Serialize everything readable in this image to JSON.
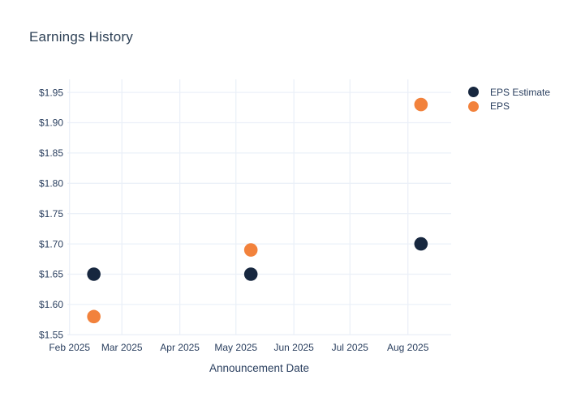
{
  "chart_data": {
    "type": "scatter",
    "title": "Earnings History",
    "xlabel": "Announcement Date",
    "ylabel": "",
    "grid": true,
    "legend_position": "right",
    "ylim": [
      1.55,
      1.95
    ],
    "y_ticks": [
      1.55,
      1.6,
      1.65,
      1.7,
      1.75,
      1.8,
      1.85,
      1.9,
      1.95
    ],
    "y_tick_labels": [
      "$1.55",
      "$1.60",
      "$1.65",
      "$1.70",
      "$1.75",
      "$1.80",
      "$1.85",
      "$1.90",
      "$1.95"
    ],
    "x_ticks": [
      {
        "date": "2025-02-01",
        "label": "Feb 2025"
      },
      {
        "date": "2025-03-01",
        "label": "Mar 2025"
      },
      {
        "date": "2025-04-01",
        "label": "Apr 2025"
      },
      {
        "date": "2025-05-01",
        "label": "May 2025"
      },
      {
        "date": "2025-06-01",
        "label": "Jun 2025"
      },
      {
        "date": "2025-07-01",
        "label": "Jul 2025"
      },
      {
        "date": "2025-08-01",
        "label": "Aug 2025"
      }
    ],
    "series": [
      {
        "name": "EPS Estimate",
        "color": "#17273F",
        "points": [
          {
            "date": "2025-02-14",
            "value": 1.65
          },
          {
            "date": "2025-05-09",
            "value": 1.65
          },
          {
            "date": "2025-08-08",
            "value": 1.7
          }
        ]
      },
      {
        "name": "EPS",
        "color": "#F2823C",
        "points": [
          {
            "date": "2025-02-14",
            "value": 1.58
          },
          {
            "date": "2025-05-09",
            "value": 1.69
          },
          {
            "date": "2025-08-08",
            "value": 1.93
          }
        ]
      }
    ]
  },
  "colors": {
    "background": "#FFFFFF",
    "grid": "#EBF0F8",
    "title_text": "#2E4156",
    "axis_text": "#2A3F5F"
  }
}
